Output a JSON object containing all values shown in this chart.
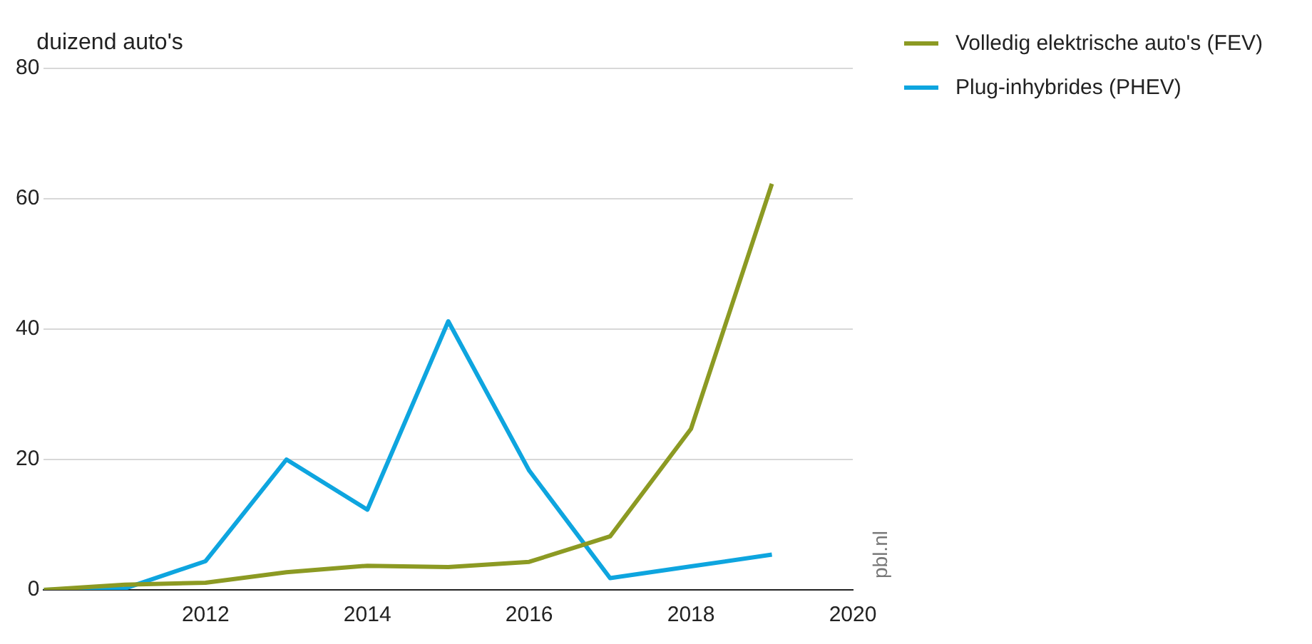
{
  "chart_data": {
    "type": "line",
    "ylabel": "duizend auto's",
    "x": [
      2010,
      2011,
      2012,
      2013,
      2014,
      2015,
      2016,
      2017,
      2018,
      2019
    ],
    "series": [
      {
        "name": "Volledig elektrische auto's (FEV)",
        "color": "#8c9a23",
        "values": [
          0,
          0.8,
          1.1,
          2.7,
          3.7,
          3.5,
          4.3,
          8.2,
          24.7,
          62.3
        ]
      },
      {
        "name": "Plug-inhybrides (PHEV)",
        "color": "#0ea5df",
        "values": [
          0,
          0.2,
          4.4,
          20,
          12.3,
          41.2,
          18.3,
          1.8,
          3.6,
          5.4
        ]
      }
    ],
    "xlim": [
      2010,
      2020
    ],
    "xticks": [
      2012,
      2014,
      2016,
      2018,
      2020
    ],
    "ylim": [
      0,
      80
    ],
    "yticks": [
      0,
      20,
      40,
      60,
      80
    ],
    "grid": "y",
    "legend": "top right",
    "marker": "none",
    "line_style": "solid",
    "annotations": [
      "pbl.nl"
    ]
  }
}
